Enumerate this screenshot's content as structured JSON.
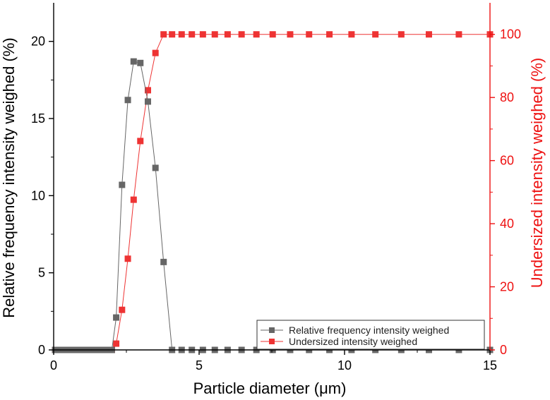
{
  "chart_data": {
    "type": "line",
    "xlabel": "Particle diameter (μm)",
    "ylabel_left": "Relative frequency intensity weighed (%)",
    "ylabel_right": "Undersized intensity weighed (%)",
    "xlim": [
      0,
      15
    ],
    "ylim_left": [
      0,
      22.5
    ],
    "ylim_right": [
      0,
      110
    ],
    "xticks": [
      0,
      5,
      10,
      15
    ],
    "yticks_left": [
      0,
      5,
      10,
      15,
      20
    ],
    "yticks_right": [
      0,
      20,
      40,
      60,
      80,
      100
    ],
    "grid": false,
    "legend_position": "bottom-right",
    "series": [
      {
        "name": "Relative frequency intensity weighed",
        "axis": "left",
        "color": "#666666",
        "marker": "square",
        "points": [
          [
            0.05,
            0
          ],
          [
            0.2,
            0
          ],
          [
            0.35,
            0
          ],
          [
            0.5,
            0
          ],
          [
            0.65,
            0
          ],
          [
            0.8,
            0
          ],
          [
            0.95,
            0
          ],
          [
            1.1,
            0
          ],
          [
            1.25,
            0
          ],
          [
            1.4,
            0
          ],
          [
            1.55,
            0
          ],
          [
            1.7,
            0
          ],
          [
            1.85,
            0
          ],
          [
            2.0,
            0
          ],
          [
            2.15,
            2.1
          ],
          [
            2.35,
            10.7
          ],
          [
            2.55,
            16.2
          ],
          [
            2.75,
            18.7
          ],
          [
            2.98,
            18.6
          ],
          [
            3.24,
            16.1
          ],
          [
            3.5,
            11.8
          ],
          [
            3.78,
            5.7
          ],
          [
            4.07,
            0
          ],
          [
            4.4,
            0
          ],
          [
            4.75,
            0
          ],
          [
            5.13,
            0
          ],
          [
            5.54,
            0
          ],
          [
            5.98,
            0
          ],
          [
            6.46,
            0
          ],
          [
            6.97,
            0
          ],
          [
            7.53,
            0
          ],
          [
            8.13,
            0
          ],
          [
            8.78,
            0
          ],
          [
            9.48,
            0
          ],
          [
            10.24,
            0
          ],
          [
            11.06,
            0
          ],
          [
            11.95,
            0
          ],
          [
            12.9,
            0
          ],
          [
            13.93,
            0
          ],
          [
            15.0,
            0
          ]
        ]
      },
      {
        "name": "Undersized intensity weighed",
        "axis": "right",
        "color": "#ee3333",
        "marker": "square",
        "points": [
          [
            0.05,
            0
          ],
          [
            0.2,
            0
          ],
          [
            0.35,
            0
          ],
          [
            0.5,
            0
          ],
          [
            0.65,
            0
          ],
          [
            0.8,
            0
          ],
          [
            0.95,
            0
          ],
          [
            1.1,
            0
          ],
          [
            1.25,
            0
          ],
          [
            1.4,
            0
          ],
          [
            1.55,
            0
          ],
          [
            1.7,
            0
          ],
          [
            1.85,
            0
          ],
          [
            2.0,
            0
          ],
          [
            2.15,
            2
          ],
          [
            2.35,
            12.7
          ],
          [
            2.55,
            28.9
          ],
          [
            2.75,
            47.6
          ],
          [
            2.98,
            66.2
          ],
          [
            3.24,
            82.3
          ],
          [
            3.5,
            94.1
          ],
          [
            3.78,
            100
          ],
          [
            4.07,
            100
          ],
          [
            4.4,
            100
          ],
          [
            4.75,
            100
          ],
          [
            5.13,
            100
          ],
          [
            5.54,
            100
          ],
          [
            5.98,
            100
          ],
          [
            6.46,
            100
          ],
          [
            6.97,
            100
          ],
          [
            7.53,
            100
          ],
          [
            8.13,
            100
          ],
          [
            8.78,
            100
          ],
          [
            9.48,
            100
          ],
          [
            10.24,
            100
          ],
          [
            11.06,
            100
          ],
          [
            11.95,
            100
          ],
          [
            12.9,
            100
          ],
          [
            13.93,
            100
          ],
          [
            15.0,
            100
          ]
        ]
      }
    ],
    "colors": {
      "left_axis": "#000000",
      "right_axis": "#ee1111"
    }
  }
}
